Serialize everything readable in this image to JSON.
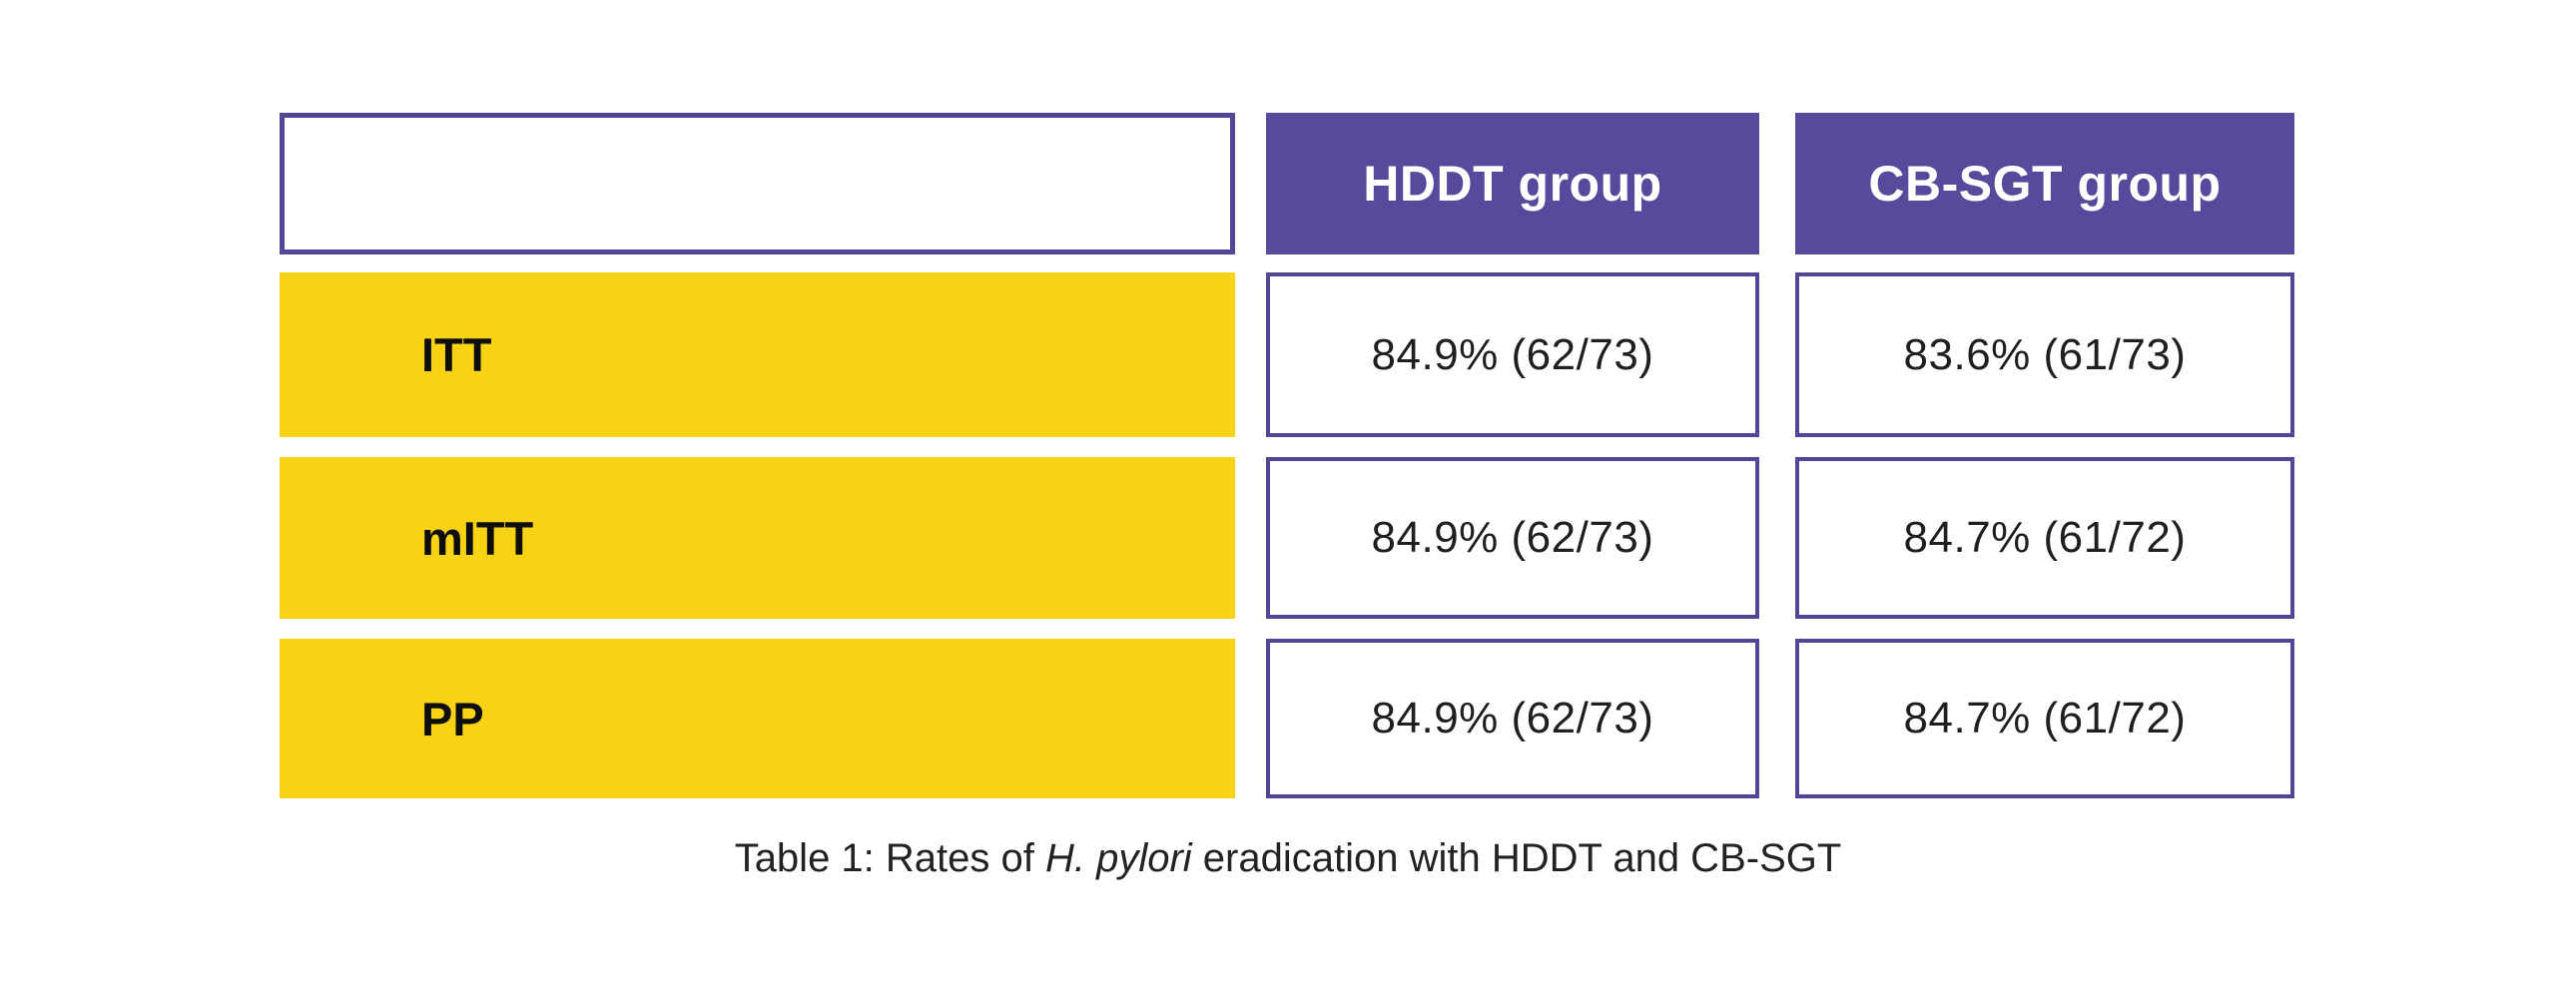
{
  "colors": {
    "header_purple": "#554a9b",
    "cell_border_purple": "#544697",
    "row_yellow": "#f7d313",
    "header_text": "#ffffff",
    "body_text": "#1f1f1f",
    "background": "#ffffff"
  },
  "table": {
    "header": {
      "col1": "",
      "col2": "HDDT group",
      "col3": "CB-SGT group"
    },
    "rows": [
      {
        "label": "ITT",
        "hddt": "84.9% (62/73)",
        "cbsgt": "83.6% (61/73)"
      },
      {
        "label": "mITT",
        "hddt": "84.9% (62/73)",
        "cbsgt": "84.7% (61/72)"
      },
      {
        "label": "PP",
        "hddt": "84.9% (62/73)",
        "cbsgt": "84.7% (61/72)"
      }
    ]
  },
  "caption": {
    "prefix": "Table 1: Rates of ",
    "italic_text": "H. pylori",
    "suffix": " eradication with HDDT and CB-SGT"
  },
  "chart_data": {
    "type": "table",
    "title": "Table 1: Rates of H. pylori eradication with HDDT and CB-SGT",
    "columns": [
      "",
      "HDDT group",
      "CB-SGT group"
    ],
    "rows": [
      [
        "ITT",
        "84.9% (62/73)",
        "83.6% (61/73)"
      ],
      [
        "mITT",
        "84.9% (62/73)",
        "84.7% (61/72)"
      ],
      [
        "PP",
        "84.9% (62/73)",
        "84.7% (61/72)"
      ]
    ],
    "values_numeric": {
      "ITT": {
        "HDDT_pct": 84.9,
        "HDDT_n": "62/73",
        "CBSGT_pct": 83.6,
        "CBSGT_n": "61/73"
      },
      "mITT": {
        "HDDT_pct": 84.9,
        "HDDT_n": "62/73",
        "CBSGT_pct": 84.7,
        "CBSGT_n": "61/72"
      },
      "PP": {
        "HDDT_pct": 84.9,
        "HDDT_n": "62/73",
        "CBSGT_pct": 84.7,
        "CBSGT_n": "61/72"
      }
    },
    "layout_hints": {
      "header_fill": "#554a9b",
      "row_label_fill": "#f7d313",
      "value_cell_border": "#544697",
      "caption_position": "bottom-center"
    }
  }
}
